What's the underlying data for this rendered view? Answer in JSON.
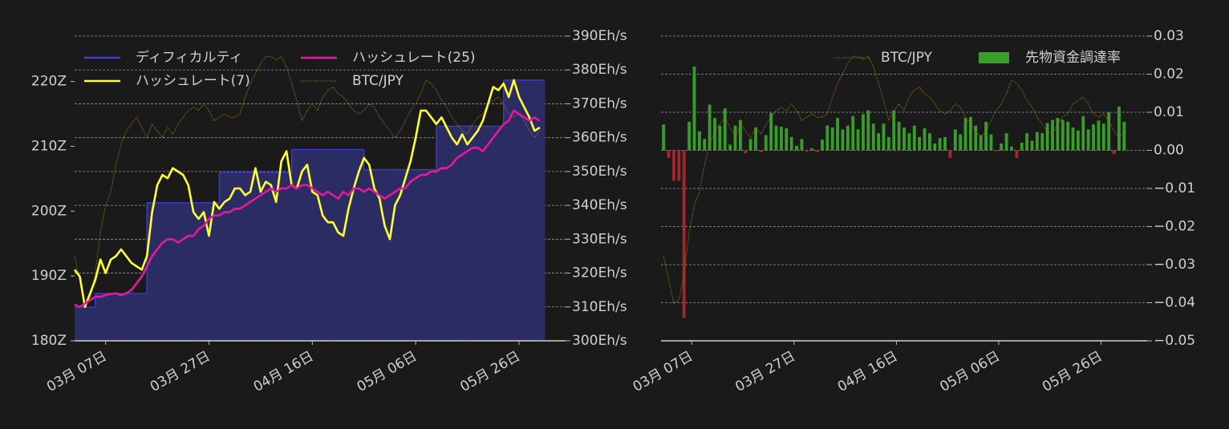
{
  "chart_data": [
    {
      "type": "line",
      "x": [
        "03-01",
        "03-02",
        "03-03",
        "03-04",
        "03-05",
        "03-06",
        "03-07",
        "03-08",
        "03-09",
        "03-10",
        "03-11",
        "03-12",
        "03-13",
        "03-14",
        "03-15",
        "03-16",
        "03-17",
        "03-18",
        "03-19",
        "03-20",
        "03-21",
        "03-22",
        "03-23",
        "03-24",
        "03-25",
        "03-26",
        "03-27",
        "03-28",
        "03-29",
        "03-30",
        "03-31",
        "04-01",
        "04-02",
        "04-03",
        "04-04",
        "04-05",
        "04-06",
        "04-07",
        "04-08",
        "04-09",
        "04-10",
        "04-11",
        "04-12",
        "04-13",
        "04-14",
        "04-15",
        "04-16",
        "04-17",
        "04-18",
        "04-19",
        "04-20",
        "04-21",
        "04-22",
        "04-23",
        "04-24",
        "04-25",
        "04-26",
        "04-27",
        "04-28",
        "04-29",
        "04-30",
        "05-01",
        "05-02",
        "05-03",
        "05-04",
        "05-05",
        "05-06",
        "05-07",
        "05-08",
        "05-09",
        "05-10",
        "05-11",
        "05-12",
        "05-13",
        "05-14",
        "05-15",
        "05-16",
        "05-17",
        "05-18",
        "05-19",
        "05-20",
        "05-21",
        "05-22",
        "05-23",
        "05-24",
        "05-25",
        "05-26",
        "05-27",
        "05-28",
        "05-29",
        "05-30"
      ],
      "xlim": [
        "03-01",
        "06-04"
      ],
      "xticks": [
        {
          "value": "03-07",
          "label": "03月 07日"
        },
        {
          "value": "03-27",
          "label": "03月 27日"
        },
        {
          "value": "04-16",
          "label": "04月 16日"
        },
        {
          "value": "05-06",
          "label": "05月 06日"
        },
        {
          "value": "05-26",
          "label": "05月 26日"
        }
      ],
      "ylim": [
        180,
        227
      ],
      "yticks": [
        {
          "value": 180,
          "label": "180Z"
        },
        {
          "value": 190,
          "label": "190Z"
        },
        {
          "value": 200,
          "label": "200Z"
        },
        {
          "value": 210,
          "label": "210Z"
        },
        {
          "value": 220,
          "label": "220Z"
        }
      ],
      "y2lim": [
        300,
        390
      ],
      "y2ticks": [
        {
          "value": 300,
          "label": "300Eh/s"
        },
        {
          "value": 310,
          "label": "310Eh/s"
        },
        {
          "value": 320,
          "label": "320Eh/s"
        },
        {
          "value": 330,
          "label": "330Eh/s"
        },
        {
          "value": 340,
          "label": "340Eh/s"
        },
        {
          "value": 350,
          "label": "350Eh/s"
        },
        {
          "value": 360,
          "label": "360Eh/s"
        },
        {
          "value": 370,
          "label": "370Eh/s"
        },
        {
          "value": 380,
          "label": "380Eh/s"
        },
        {
          "value": 390,
          "label": "390Eh/s"
        }
      ],
      "grid": true,
      "legend": "upper left",
      "series": [
        {
          "name": "ディフィカルティ",
          "type": "step",
          "color": "#3c3cd0",
          "fill": "#2c2c64",
          "values": [
            185.2,
            185.2,
            185.2,
            185.2,
            187.3,
            187.3,
            187.3,
            187.3,
            187.3,
            187.3,
            187.3,
            187.3,
            187.3,
            187.3,
            201.3,
            201.3,
            201.3,
            201.3,
            201.3,
            201.3,
            201.3,
            201.3,
            201.3,
            201.3,
            201.3,
            201.3,
            201.3,
            201.3,
            206.0,
            206.0,
            206.0,
            206.0,
            206.0,
            206.0,
            206.0,
            206.0,
            206.0,
            206.0,
            206.0,
            206.0,
            206.0,
            206.0,
            209.5,
            209.5,
            209.5,
            209.5,
            209.5,
            209.5,
            209.5,
            209.5,
            209.5,
            209.5,
            209.5,
            209.5,
            209.5,
            209.5,
            206.4,
            206.4,
            206.4,
            206.4,
            206.4,
            206.4,
            206.4,
            206.4,
            206.4,
            206.4,
            206.4,
            206.4,
            206.4,
            206.4,
            213.1,
            213.1,
            213.1,
            213.1,
            213.1,
            213.1,
            213.1,
            213.1,
            213.1,
            213.1,
            213.1,
            213.1,
            213.1,
            220.2,
            220.2,
            220.2,
            220.2,
            220.2,
            220.2,
            220.2,
            220.2
          ]
        },
        {
          "name": "ハッシュレート(7)",
          "type": "line",
          "axis": "y2",
          "color": "#ffff33",
          "values": [
            321,
            319,
            310,
            314,
            318,
            324,
            320,
            324,
            325,
            327,
            325,
            323,
            322,
            321,
            325,
            338,
            346,
            349,
            348,
            351,
            350,
            349,
            346,
            338,
            336,
            338,
            331,
            341,
            339,
            341,
            342,
            345,
            345,
            343,
            344,
            351,
            344,
            347,
            346,
            341,
            353,
            356,
            346,
            345,
            350,
            352,
            344,
            343,
            337,
            335,
            335,
            332,
            331,
            339,
            345,
            350,
            354,
            352,
            345,
            342,
            334,
            330,
            340,
            343,
            348,
            353,
            360,
            368,
            368,
            366,
            364,
            366,
            363,
            360,
            358,
            361,
            358,
            360,
            362,
            365,
            370,
            375,
            374,
            376,
            372,
            377,
            372,
            369,
            366,
            362,
            363
          ]
        },
        {
          "name": "ハッシュレート(25)",
          "type": "line",
          "axis": "y2",
          "color": "#e8189c",
          "values": [
            310.7,
            310,
            311,
            312,
            313,
            313,
            313.5,
            313.8,
            314,
            313.5,
            314,
            315,
            317,
            319,
            322,
            325,
            327,
            329,
            330,
            330,
            329,
            330,
            331,
            331,
            333,
            334,
            336,
            337,
            337,
            338,
            338,
            339,
            339,
            340,
            341,
            342,
            343,
            344,
            345,
            344,
            345,
            345,
            346,
            345,
            346,
            346,
            345,
            344,
            343,
            344,
            343,
            342,
            344,
            343,
            345,
            345,
            344,
            345,
            344,
            343,
            342,
            343,
            344,
            345,
            345,
            347,
            348,
            349,
            349,
            350,
            350,
            351,
            351,
            352,
            354,
            355,
            356,
            357,
            357,
            356,
            358,
            360,
            362,
            364,
            365,
            368,
            367,
            366,
            365,
            366,
            365
          ]
        },
        {
          "name": "BTC/JPY",
          "type": "line",
          "axis": "y2",
          "color": "#9a7418",
          "dashed": true,
          "values": [
            325,
            318,
            311,
            312,
            320,
            332,
            340,
            344,
            352,
            358,
            362,
            364,
            366,
            363,
            360,
            364,
            362,
            360,
            363,
            361,
            364,
            366,
            368,
            369,
            368,
            370,
            368,
            365,
            366,
            367,
            366,
            366,
            367,
            372,
            376,
            379,
            382,
            384,
            384,
            383,
            384,
            381,
            376,
            371,
            365,
            368,
            370,
            368,
            372,
            374,
            375,
            373,
            372,
            370,
            368,
            367,
            368,
            370,
            369,
            366,
            364,
            362,
            360,
            362,
            365,
            368,
            370,
            373,
            377,
            376,
            374,
            371,
            369,
            366,
            364,
            362,
            361,
            364,
            366,
            367,
            370,
            371,
            372,
            370,
            367,
            366,
            367,
            365,
            362,
            360,
            362
          ]
        }
      ]
    },
    {
      "type": "bar",
      "x": [
        "03-01",
        "03-02",
        "03-03",
        "03-04",
        "03-05",
        "03-06",
        "03-07",
        "03-08",
        "03-09",
        "03-10",
        "03-11",
        "03-12",
        "03-13",
        "03-14",
        "03-15",
        "03-16",
        "03-17",
        "03-18",
        "03-19",
        "03-20",
        "03-21",
        "03-22",
        "03-23",
        "03-24",
        "03-25",
        "03-26",
        "03-27",
        "03-28",
        "03-29",
        "03-30",
        "03-31",
        "04-01",
        "04-02",
        "04-03",
        "04-04",
        "04-05",
        "04-06",
        "04-07",
        "04-08",
        "04-09",
        "04-10",
        "04-11",
        "04-12",
        "04-13",
        "04-14",
        "04-15",
        "04-16",
        "04-17",
        "04-18",
        "04-19",
        "04-20",
        "04-21",
        "04-22",
        "04-23",
        "04-24",
        "04-25",
        "04-26",
        "04-27",
        "04-28",
        "04-29",
        "04-30",
        "05-01",
        "05-02",
        "05-03",
        "05-04",
        "05-05",
        "05-06",
        "05-07",
        "05-08",
        "05-09",
        "05-10",
        "05-11",
        "05-12",
        "05-13",
        "05-14",
        "05-15",
        "05-16",
        "05-17",
        "05-18",
        "05-19",
        "05-20",
        "05-21",
        "05-22",
        "05-23",
        "05-24",
        "05-25",
        "05-26",
        "05-27",
        "05-28",
        "05-29",
        "05-30"
      ],
      "xlim": [
        "03-01",
        "06-04"
      ],
      "xticks": [
        {
          "value": "03-07",
          "label": "03月 07日"
        },
        {
          "value": "03-27",
          "label": "03月 27日"
        },
        {
          "value": "04-16",
          "label": "04月 16日"
        },
        {
          "value": "05-06",
          "label": "05月 06日"
        },
        {
          "value": "05-26",
          "label": "05月 26日"
        }
      ],
      "ylim": [
        -0.05,
        0.03
      ],
      "yticks": [
        {
          "value": -0.05,
          "label": "−0.05"
        },
        {
          "value": -0.04,
          "label": "−0.04"
        },
        {
          "value": -0.03,
          "label": "−0.03"
        },
        {
          "value": -0.02,
          "label": "−0.02"
        },
        {
          "value": -0.01,
          "label": "−0.01"
        },
        {
          "value": 0,
          "label": "0.00"
        },
        0.01,
        0.02,
        0.03
      ],
      "grid": true,
      "legend": "upper right",
      "series": [
        {
          "name": "BTC/JPY",
          "type": "line",
          "color": "#9a7418",
          "dashed": true,
          "values": [
            -0.0278,
            -0.034,
            -0.0402,
            -0.0393,
            -0.0322,
            -0.0216,
            -0.0144,
            -0.0109,
            -0.0038,
            0.0016,
            0.0051,
            0.0069,
            0.0087,
            0.006,
            0.0033,
            0.0069,
            0.0051,
            0.0033,
            0.006,
            0.0042,
            0.0069,
            0.0087,
            0.0104,
            0.0113,
            0.0104,
            0.0122,
            0.0104,
            0.0078,
            0.0087,
            0.0096,
            0.0087,
            0.0087,
            0.0096,
            0.014,
            0.0176,
            0.0202,
            0.0229,
            0.0247,
            0.0247,
            0.0238,
            0.0247,
            0.022,
            0.0176,
            0.0131,
            0.0078,
            0.0104,
            0.0122,
            0.0104,
            0.014,
            0.0158,
            0.0167,
            0.0149,
            0.014,
            0.0122,
            0.0104,
            0.0096,
            0.0104,
            0.0122,
            0.0113,
            0.0087,
            0.0069,
            0.0051,
            0.0033,
            0.0051,
            0.0078,
            0.0104,
            0.0122,
            0.0149,
            0.0184,
            0.0176,
            0.0158,
            0.0131,
            0.0113,
            0.0087,
            0.0069,
            0.0051,
            0.0042,
            0.0069,
            0.0087,
            0.0096,
            0.0122,
            0.0131,
            0.014,
            0.0122,
            0.0096,
            0.0087,
            0.0096,
            0.0078,
            0.0051,
            0.0033,
            0.0051
          ]
        },
        {
          "name": "先物資金調達率",
          "type": "bar",
          "color": "#3a9c2a",
          "negative_color": "#a3282c",
          "values": [
            0.0068,
            -0.002,
            -0.008,
            -0.008,
            -0.044,
            0.0075,
            0.022,
            0.005,
            0.003,
            0.012,
            0.0085,
            0.0065,
            0.011,
            0.0015,
            0.0065,
            0.008,
            -0.0008,
            0.003,
            0.006,
            -0.0005,
            0.004,
            0.0098,
            0.0065,
            0.0062,
            0.0058,
            0.0035,
            0.0012,
            0.003,
            -0.0003,
            0.0005,
            -0.0005,
            0.0028,
            0.0065,
            0.006,
            0.0085,
            0.0055,
            0.0065,
            0.009,
            0.0055,
            0.0095,
            0.0105,
            0.007,
            0.0045,
            0.007,
            0.0035,
            0.0105,
            0.0075,
            0.006,
            0.0045,
            0.0065,
            0.0035,
            0.0058,
            0.0045,
            0.0018,
            0.0032,
            0.0035,
            -0.002,
            0.0055,
            0.0042,
            0.0085,
            0.0088,
            0.0065,
            0.004,
            0.0075,
            0.0042,
            -0.0002,
            0.0018,
            0.0045,
            0.001,
            -0.002,
            0.002,
            0.0045,
            0.0025,
            0.0048,
            0.0045,
            0.0072,
            0.008,
            0.0085,
            0.008,
            0.0075,
            0.006,
            0.0052,
            0.009,
            0.0055,
            0.0068,
            0.0078,
            0.007,
            0.01,
            -0.001,
            0.0115,
            0.0075
          ]
        }
      ]
    }
  ]
}
